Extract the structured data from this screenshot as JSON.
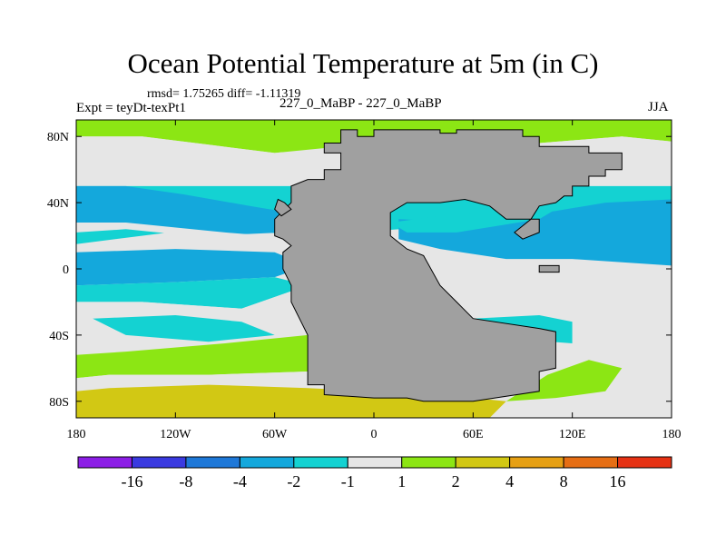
{
  "chart_data": {
    "type": "heatmap",
    "title": "Ocean Potential Temperature at 5m (in C)",
    "stats": "rmsd= 1.75265 diff= -1.11319",
    "left_label": "Expt = teyDt-texPt1",
    "center_label": "227_0_MaBP - 227_0_MaBP",
    "right_label": "JJA",
    "xlim": [
      -180,
      180
    ],
    "ylim": [
      -90,
      90
    ],
    "x_ticks": [
      {
        "value": -180,
        "label": "180"
      },
      {
        "value": -120,
        "label": "120W"
      },
      {
        "value": -60,
        "label": "60W"
      },
      {
        "value": 0,
        "label": "0"
      },
      {
        "value": 60,
        "label": "60E"
      },
      {
        "value": 120,
        "label": "120E"
      },
      {
        "value": 180,
        "label": "180"
      }
    ],
    "y_ticks": [
      {
        "value": 80,
        "label": "80N"
      },
      {
        "value": 40,
        "label": "40N"
      },
      {
        "value": 0,
        "label": "0"
      },
      {
        "value": -40,
        "label": "40S"
      },
      {
        "value": -80,
        "label": "80S"
      }
    ],
    "colorbar": {
      "labels": [
        "-16",
        "-8",
        "-4",
        "-2",
        "-1",
        "1",
        "2",
        "4",
        "8",
        "16"
      ],
      "colors": [
        "#8c1ee6",
        "#3a3ae0",
        "#1e78d8",
        "#14a8dc",
        "#14d2d2",
        "#e6e6e6",
        "#8ce614",
        "#d2c814",
        "#e6a014",
        "#e66e14",
        "#e63214"
      ]
    },
    "land_color": "#a0a0a0",
    "regions": [
      {
        "name": "north-high-lat-green",
        "color": "#8ce614",
        "points": [
          [
            -180,
            90
          ],
          [
            180,
            90
          ],
          [
            180,
            77
          ],
          [
            150,
            80
          ],
          [
            100,
            76
          ],
          [
            60,
            72
          ],
          [
            20,
            76
          ],
          [
            -20,
            74
          ],
          [
            -60,
            70
          ],
          [
            -100,
            75
          ],
          [
            -140,
            80
          ],
          [
            -180,
            80
          ]
        ]
      },
      {
        "name": "north-atlantic-green",
        "color": "#8ce614",
        "points": [
          [
            -60,
            72
          ],
          [
            -30,
            62
          ],
          [
            -15,
            58
          ],
          [
            -10,
            64
          ],
          [
            -30,
            74
          ]
        ]
      },
      {
        "name": "north-gray-band",
        "color": "#e6e6e6",
        "points": [
          [
            -180,
            80
          ],
          [
            -140,
            80
          ],
          [
            -100,
            75
          ],
          [
            -60,
            70
          ],
          [
            -20,
            74
          ],
          [
            20,
            76
          ],
          [
            60,
            72
          ],
          [
            100,
            76
          ],
          [
            150,
            80
          ],
          [
            180,
            77
          ],
          [
            180,
            50
          ],
          [
            -180,
            50
          ]
        ]
      },
      {
        "name": "north-pacific-cyan",
        "color": "#14d2d2",
        "points": [
          [
            -180,
            50
          ],
          [
            180,
            50
          ],
          [
            180,
            10
          ],
          [
            150,
            15
          ],
          [
            90,
            20
          ],
          [
            30,
            25
          ],
          [
            -40,
            20
          ],
          [
            -100,
            25
          ],
          [
            -180,
            15
          ]
        ]
      },
      {
        "name": "north-pacific-blue",
        "color": "#14a8dc",
        "points": [
          [
            -180,
            50
          ],
          [
            -150,
            50
          ],
          [
            -115,
            45
          ],
          [
            -75,
            38
          ],
          [
            -45,
            33
          ],
          [
            -55,
            22
          ],
          [
            -100,
            20
          ],
          [
            -150,
            28
          ],
          [
            -180,
            28
          ]
        ]
      },
      {
        "name": "tethys-blue",
        "color": "#14a8dc",
        "points": [
          [
            15,
            30
          ],
          [
            60,
            28
          ],
          [
            110,
            35
          ],
          [
            140,
            40
          ],
          [
            180,
            42
          ],
          [
            180,
            2
          ],
          [
            120,
            6
          ],
          [
            80,
            6
          ],
          [
            40,
            12
          ],
          [
            15,
            18
          ]
        ]
      },
      {
        "name": "equatorial-blue",
        "color": "#14a8dc",
        "points": [
          [
            -180,
            10
          ],
          [
            -120,
            12
          ],
          [
            -60,
            10
          ],
          [
            -40,
            2
          ],
          [
            -60,
            -5
          ],
          [
            -120,
            -8
          ],
          [
            -180,
            -10
          ]
        ]
      },
      {
        "name": "equatorial-cyan-band",
        "color": "#14d2d2",
        "points": [
          [
            -180,
            -10
          ],
          [
            -120,
            -8
          ],
          [
            -60,
            -5
          ],
          [
            -40,
            -10
          ],
          [
            -80,
            -24
          ],
          [
            -140,
            -20
          ],
          [
            -180,
            -20
          ]
        ]
      },
      {
        "name": "south-gray-band",
        "color": "#e6e6e6",
        "points": [
          [
            -180,
            -20
          ],
          [
            -140,
            -20
          ],
          [
            -80,
            -24
          ],
          [
            -40,
            -10
          ],
          [
            -40,
            -40
          ],
          [
            -90,
            -45
          ],
          [
            -150,
            -50
          ],
          [
            -180,
            -52
          ]
        ]
      },
      {
        "name": "south-pacific-cyan",
        "color": "#14d2d2",
        "points": [
          [
            -170,
            -30
          ],
          [
            -120,
            -28
          ],
          [
            -80,
            -32
          ],
          [
            -60,
            -40
          ],
          [
            -100,
            -44
          ],
          [
            -150,
            -40
          ]
        ]
      },
      {
        "name": "south-pacific-green",
        "color": "#8ce614",
        "points": [
          [
            -180,
            -52
          ],
          [
            -150,
            -50
          ],
          [
            -90,
            -45
          ],
          [
            -40,
            -40
          ],
          [
            -40,
            -62
          ],
          [
            -100,
            -64
          ],
          [
            -160,
            -64
          ],
          [
            -180,
            -66
          ]
        ]
      },
      {
        "name": "south-gray-high",
        "color": "#e6e6e6",
        "points": [
          [
            -180,
            -66
          ],
          [
            -160,
            -64
          ],
          [
            -100,
            -64
          ],
          [
            -40,
            -62
          ],
          [
            -40,
            -72
          ],
          [
            -100,
            -70
          ],
          [
            -160,
            -72
          ],
          [
            -180,
            -74
          ]
        ]
      },
      {
        "name": "south-yellow",
        "color": "#d2c814",
        "points": [
          [
            -180,
            -74
          ],
          [
            -160,
            -72
          ],
          [
            -100,
            -70
          ],
          [
            -40,
            -72
          ],
          [
            0,
            -74
          ],
          [
            60,
            -78
          ],
          [
            80,
            -80
          ],
          [
            70,
            -90
          ],
          [
            -180,
            -90
          ]
        ]
      },
      {
        "name": "east-south-cyan",
        "color": "#14d2d2",
        "points": [
          [
            60,
            -30
          ],
          [
            100,
            -28
          ],
          [
            120,
            -32
          ],
          [
            120,
            -45
          ],
          [
            80,
            -42
          ],
          [
            60,
            -38
          ]
        ]
      },
      {
        "name": "east-south-gray",
        "color": "#e6e6e6",
        "points": [
          [
            120,
            -30
          ],
          [
            180,
            -28
          ],
          [
            180,
            -68
          ],
          [
            130,
            -72
          ],
          [
            110,
            -65
          ],
          [
            120,
            -48
          ]
        ]
      },
      {
        "name": "east-south-green",
        "color": "#8ce614",
        "points": [
          [
            105,
            -64
          ],
          [
            130,
            -55
          ],
          [
            150,
            -60
          ],
          [
            140,
            -74
          ],
          [
            110,
            -78
          ],
          [
            80,
            -80
          ]
        ]
      },
      {
        "name": "east-equator-white",
        "color": "#e6e6e6",
        "points": [
          [
            50,
            -12
          ],
          [
            110,
            -8
          ],
          [
            150,
            -12
          ],
          [
            180,
            -10
          ],
          [
            180,
            -26
          ],
          [
            120,
            -28
          ],
          [
            60,
            -28
          ]
        ]
      },
      {
        "name": "east-equator-white-blob",
        "color": "#e6e6e6",
        "points": [
          [
            60,
            -15
          ],
          [
            100,
            -15
          ],
          [
            110,
            -22
          ],
          [
            80,
            -24
          ],
          [
            60,
            -20
          ]
        ]
      },
      {
        "name": "east-north-cyan",
        "color": "#14d2d2",
        "points": [
          [
            10,
            28
          ],
          [
            40,
            32
          ],
          [
            70,
            34
          ],
          [
            100,
            38
          ],
          [
            120,
            42
          ],
          [
            100,
            30
          ],
          [
            50,
            22
          ],
          [
            20,
            22
          ]
        ]
      },
      {
        "name": "north-atlantic-cyan-wisp",
        "color": "#14d2d2",
        "points": [
          [
            -20,
            28
          ],
          [
            0,
            24
          ],
          [
            10,
            20
          ],
          [
            -5,
            18
          ],
          [
            -25,
            22
          ]
        ]
      },
      {
        "name": "mid-pacific-white-north",
        "color": "#e6e6e6",
        "points": [
          [
            -180,
            22
          ],
          [
            -150,
            24
          ],
          [
            -110,
            20
          ],
          [
            -80,
            14
          ],
          [
            -40,
            14
          ],
          [
            -40,
            18
          ],
          [
            -90,
            22
          ],
          [
            -150,
            28
          ],
          [
            -180,
            28
          ]
        ]
      },
      {
        "name": "land-supercontinent",
        "color": "#a0a0a0",
        "points": [
          [
            -20,
            84
          ],
          [
            -10,
            84
          ],
          [
            -10,
            80
          ],
          [
            0,
            80
          ],
          [
            0,
            84
          ],
          [
            40,
            84
          ],
          [
            40,
            82
          ],
          [
            50,
            82
          ],
          [
            50,
            84
          ],
          [
            90,
            84
          ],
          [
            90,
            80
          ],
          [
            100,
            80
          ],
          [
            100,
            74
          ],
          [
            130,
            74
          ],
          [
            130,
            70
          ],
          [
            150,
            70
          ],
          [
            150,
            60
          ],
          [
            140,
            60
          ],
          [
            140,
            56
          ],
          [
            130,
            56
          ],
          [
            130,
            50
          ],
          [
            120,
            50
          ],
          [
            120,
            44
          ],
          [
            115,
            44
          ],
          [
            110,
            40
          ],
          [
            100,
            38
          ],
          [
            95,
            30
          ],
          [
            85,
            22
          ],
          [
            90,
            18
          ],
          [
            100,
            22
          ],
          [
            100,
            30
          ],
          [
            80,
            30
          ],
          [
            70,
            38
          ],
          [
            55,
            42
          ],
          [
            40,
            40
          ],
          [
            20,
            40
          ],
          [
            10,
            34
          ],
          [
            10,
            20
          ],
          [
            20,
            12
          ],
          [
            30,
            8
          ],
          [
            40,
            -10
          ],
          [
            50,
            -20
          ],
          [
            60,
            -30
          ],
          [
            100,
            -36
          ],
          [
            110,
            -38
          ],
          [
            110,
            -60
          ],
          [
            100,
            -62
          ],
          [
            100,
            -74
          ],
          [
            60,
            -80
          ],
          [
            30,
            -80
          ],
          [
            20,
            -78
          ],
          [
            0,
            -78
          ],
          [
            -30,
            -76
          ],
          [
            -30,
            -70
          ],
          [
            -40,
            -70
          ],
          [
            -40,
            -40
          ],
          [
            -45,
            -30
          ],
          [
            -50,
            -20
          ],
          [
            -50,
            -10
          ],
          [
            -55,
            0
          ],
          [
            -55,
            10
          ],
          [
            -50,
            14
          ],
          [
            -55,
            18
          ],
          [
            -60,
            20
          ],
          [
            -60,
            30
          ],
          [
            -50,
            40
          ],
          [
            -50,
            50
          ],
          [
            -40,
            54
          ],
          [
            -30,
            54
          ],
          [
            -30,
            60
          ],
          [
            -20,
            60
          ],
          [
            -20,
            70
          ],
          [
            -30,
            70
          ],
          [
            -30,
            76
          ],
          [
            -20,
            76
          ]
        ]
      },
      {
        "name": "island-bar",
        "color": "#a0a0a0",
        "points": [
          [
            100,
            2
          ],
          [
            112,
            2
          ],
          [
            112,
            -2
          ],
          [
            100,
            -2
          ]
        ]
      },
      {
        "name": "land-west-inset",
        "color": "#a0a0a0",
        "points": [
          [
            -58,
            42
          ],
          [
            -54,
            40
          ],
          [
            -50,
            36
          ],
          [
            -56,
            32
          ],
          [
            -60,
            36
          ]
        ]
      }
    ]
  }
}
